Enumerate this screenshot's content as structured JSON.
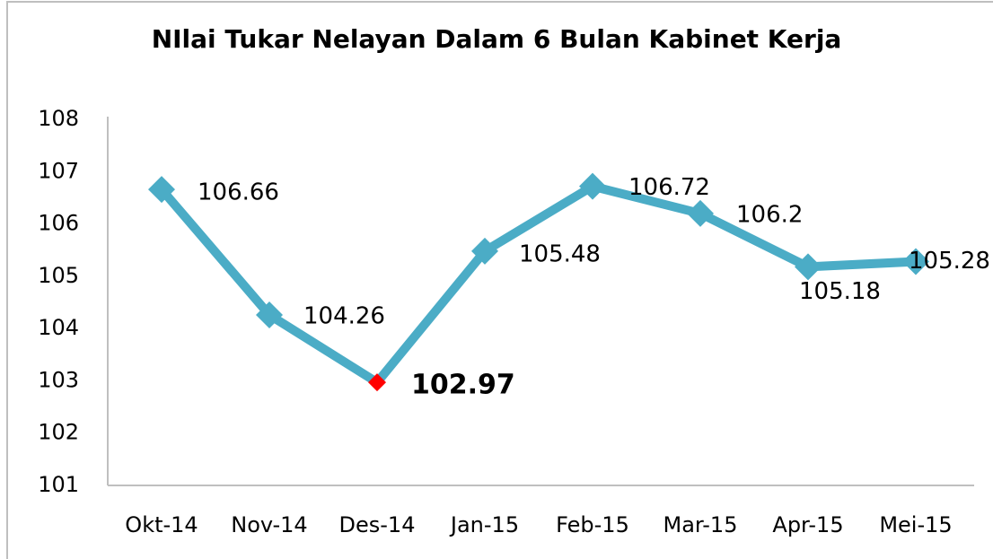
{
  "chart_data": {
    "type": "line",
    "title": "NIlai Tukar Nelayan Dalam 6 Bulan Kabinet Kerja",
    "categories": [
      "Okt-14",
      "Nov-14",
      "Des-14",
      "Jan-15",
      "Feb-15",
      "Mar-15",
      "Apr-15",
      "Mei-15"
    ],
    "values": [
      106.66,
      104.26,
      102.97,
      105.48,
      106.72,
      106.2,
      105.18,
      105.28
    ],
    "color": "#4bacc6",
    "point_colors": [
      "#4bacc6",
      "#4bacc6",
      "#ff0000",
      "#4bacc6",
      "#4bacc6",
      "#4bacc6",
      "#4bacc6",
      "#4bacc6"
    ],
    "label_weights": [
      "normal",
      "normal",
      "bold",
      "normal",
      "normal",
      "normal",
      "normal",
      "normal"
    ],
    "ylim": [
      101,
      108
    ],
    "yticks": [
      101,
      102,
      103,
      104,
      105,
      106,
      107,
      108
    ],
    "grid": false
  }
}
